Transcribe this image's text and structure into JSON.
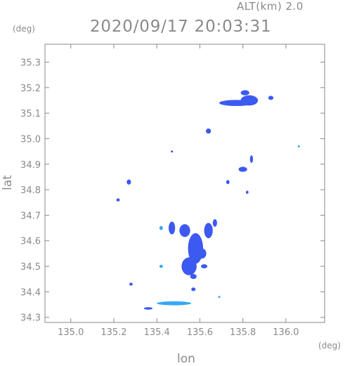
{
  "header": {
    "altitude_label": "ALT(km) 2.0",
    "timestamp": "2020/09/17 20:03:31"
  },
  "chart_data": {
    "type": "heatmap",
    "title": "2020/09/17 20:03:31",
    "subtitle": "ALT(km) 2.0",
    "xlabel": "lon",
    "ylabel": "lat",
    "xunit": "(deg)",
    "yunit": "(deg)",
    "xlim": [
      134.88,
      136.18
    ],
    "ylim": [
      34.28,
      35.37
    ],
    "xticks": [
      135.0,
      135.2,
      135.4,
      135.6,
      135.8,
      136.0
    ],
    "xtick_labels": [
      "135.0",
      "135.2",
      "135.4",
      "135.6",
      "135.8",
      "136.0"
    ],
    "yticks": [
      34.3,
      34.4,
      34.5,
      34.6,
      34.7,
      34.8,
      34.9,
      35.0,
      35.1,
      35.2,
      35.3
    ],
    "ytick_labels": [
      "34.3",
      "34.4",
      "34.5",
      "34.6",
      "34.7",
      "34.8",
      "34.9",
      "35.0",
      "35.1",
      "35.2",
      "35.3"
    ],
    "grid": false,
    "colors": {
      "main": "#3c5af0",
      "light": "#36a8f5",
      "axis": "#8a8a8a"
    },
    "echo_cells": [
      {
        "lon": 135.77,
        "lat": 35.14,
        "rx": 0.08,
        "ry": 0.012,
        "color": "#3c5af0"
      },
      {
        "lon": 135.83,
        "lat": 35.15,
        "rx": 0.04,
        "ry": 0.02,
        "color": "#3c5af0"
      },
      {
        "lon": 135.81,
        "lat": 35.18,
        "rx": 0.02,
        "ry": 0.01,
        "color": "#3c5af0"
      },
      {
        "lon": 135.93,
        "lat": 35.16,
        "rx": 0.012,
        "ry": 0.008,
        "color": "#3c5af0"
      },
      {
        "lon": 135.64,
        "lat": 35.03,
        "rx": 0.012,
        "ry": 0.01,
        "color": "#3c5af0"
      },
      {
        "lon": 135.47,
        "lat": 34.95,
        "rx": 0.005,
        "ry": 0.004,
        "color": "#3c5af0"
      },
      {
        "lon": 136.06,
        "lat": 34.97,
        "rx": 0.005,
        "ry": 0.003,
        "color": "#36a8f5"
      },
      {
        "lon": 135.8,
        "lat": 34.88,
        "rx": 0.02,
        "ry": 0.01,
        "color": "#3c5af0"
      },
      {
        "lon": 135.84,
        "lat": 34.92,
        "rx": 0.007,
        "ry": 0.015,
        "color": "#3c5af0"
      },
      {
        "lon": 135.27,
        "lat": 34.83,
        "rx": 0.01,
        "ry": 0.01,
        "color": "#3c5af0"
      },
      {
        "lon": 135.22,
        "lat": 34.76,
        "rx": 0.008,
        "ry": 0.006,
        "color": "#3c5af0"
      },
      {
        "lon": 135.73,
        "lat": 34.83,
        "rx": 0.008,
        "ry": 0.008,
        "color": "#3c5af0"
      },
      {
        "lon": 135.82,
        "lat": 34.79,
        "rx": 0.006,
        "ry": 0.006,
        "color": "#3c5af0"
      },
      {
        "lon": 135.47,
        "lat": 34.65,
        "rx": 0.015,
        "ry": 0.025,
        "color": "#3c5af0"
      },
      {
        "lon": 135.53,
        "lat": 34.64,
        "rx": 0.025,
        "ry": 0.025,
        "color": "#3c5af0"
      },
      {
        "lon": 135.58,
        "lat": 34.57,
        "rx": 0.035,
        "ry": 0.06,
        "color": "#3c5af0"
      },
      {
        "lon": 135.55,
        "lat": 34.5,
        "rx": 0.035,
        "ry": 0.035,
        "color": "#3c5af0"
      },
      {
        "lon": 135.61,
        "lat": 34.55,
        "rx": 0.02,
        "ry": 0.02,
        "color": "#3c5af0"
      },
      {
        "lon": 135.64,
        "lat": 34.64,
        "rx": 0.02,
        "ry": 0.03,
        "color": "#3c5af0"
      },
      {
        "lon": 135.67,
        "lat": 34.67,
        "rx": 0.01,
        "ry": 0.015,
        "color": "#3c5af0"
      },
      {
        "lon": 135.42,
        "lat": 34.65,
        "rx": 0.008,
        "ry": 0.008,
        "color": "#36a8f5"
      },
      {
        "lon": 135.42,
        "lat": 34.5,
        "rx": 0.008,
        "ry": 0.006,
        "color": "#36a8f5"
      },
      {
        "lon": 135.62,
        "lat": 34.5,
        "rx": 0.015,
        "ry": 0.008,
        "color": "#3c5af0"
      },
      {
        "lon": 135.57,
        "lat": 34.46,
        "rx": 0.015,
        "ry": 0.01,
        "color": "#3c5af0"
      },
      {
        "lon": 135.28,
        "lat": 34.43,
        "rx": 0.008,
        "ry": 0.006,
        "color": "#3c5af0"
      },
      {
        "lon": 135.57,
        "lat": 34.41,
        "rx": 0.01,
        "ry": 0.007,
        "color": "#3c5af0"
      },
      {
        "lon": 135.48,
        "lat": 34.355,
        "rx": 0.08,
        "ry": 0.008,
        "color": "#36a8f5"
      },
      {
        "lon": 135.36,
        "lat": 34.335,
        "rx": 0.02,
        "ry": 0.005,
        "color": "#3c5af0"
      },
      {
        "lon": 135.69,
        "lat": 34.38,
        "rx": 0.004,
        "ry": 0.004,
        "color": "#36a8f5"
      }
    ]
  }
}
